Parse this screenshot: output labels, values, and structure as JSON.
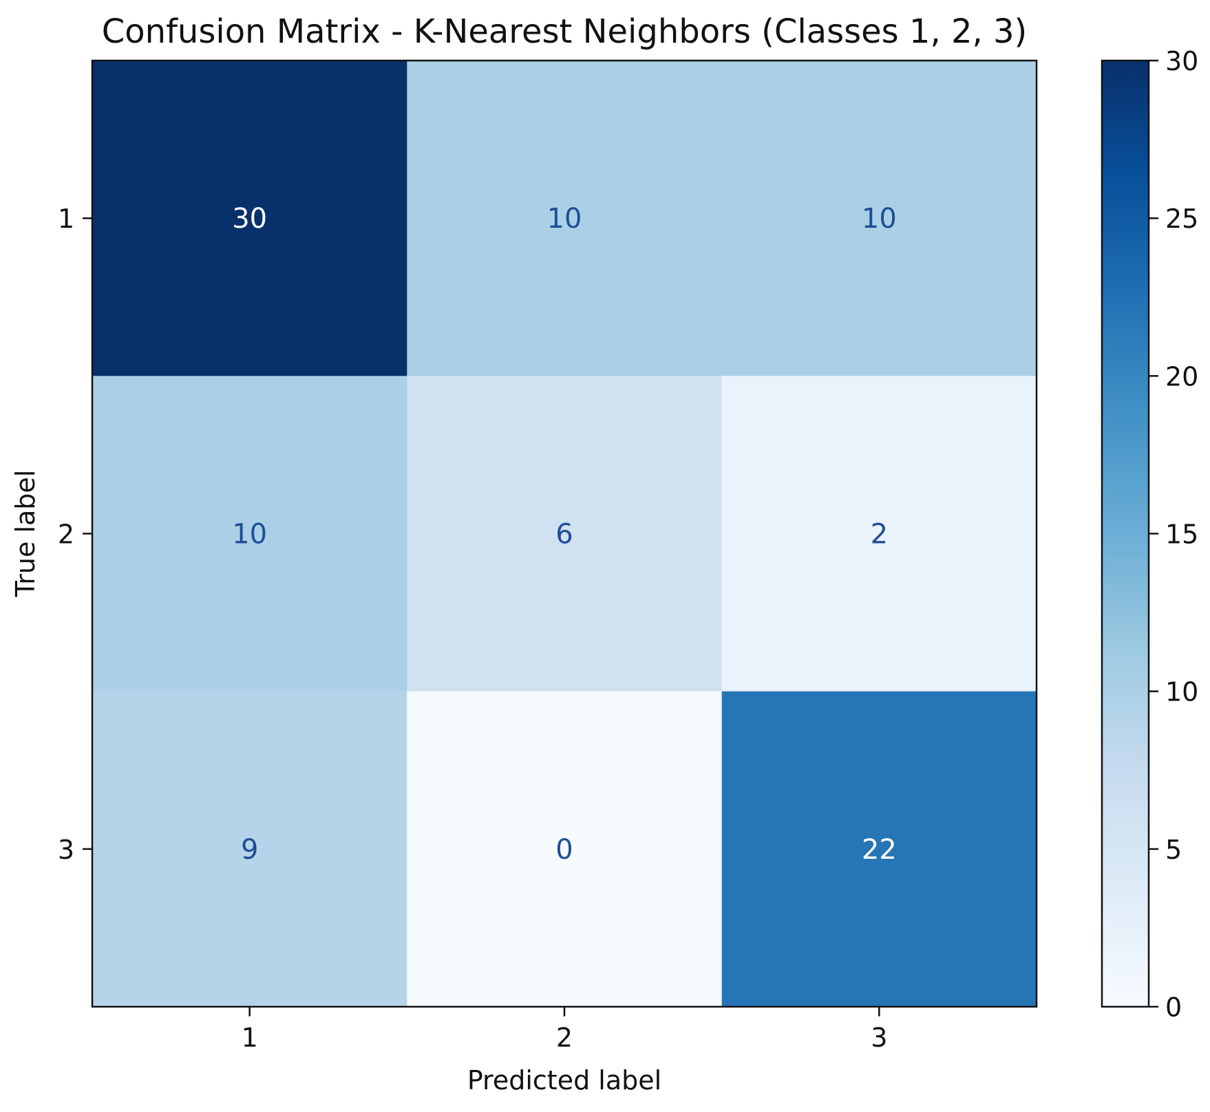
{
  "chart_data": {
    "type": "heatmap",
    "title": "Confusion Matrix - K-Nearest Neighbors (Classes 1, 2, 3)",
    "xlabel": "Predicted label",
    "ylabel": "True label",
    "x_categories": [
      "1",
      "2",
      "3"
    ],
    "y_categories": [
      "1",
      "2",
      "3"
    ],
    "values": [
      [
        30,
        10,
        10
      ],
      [
        10,
        6,
        2
      ],
      [
        9,
        0,
        22
      ]
    ],
    "colormap": "Blues",
    "colorbar": {
      "range": [
        0,
        30
      ],
      "ticks": [
        0,
        5,
        10,
        15,
        20,
        25,
        30
      ]
    },
    "text_color_light": "#ffffff",
    "text_color_dark": "#1f4e96"
  }
}
